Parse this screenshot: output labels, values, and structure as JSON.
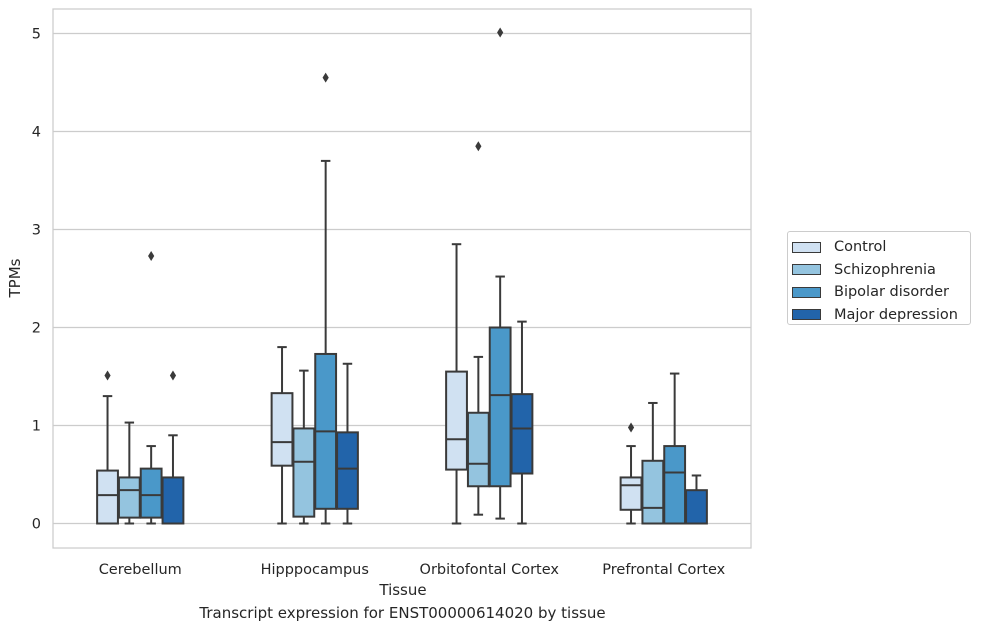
{
  "chart_data": {
    "type": "box",
    "xlabel": "Tissue",
    "ylabel": "TPMs",
    "caption": "Transcript expression for ENST00000614020 by tissue",
    "categories": [
      "Cerebellum",
      "Hipppocampus",
      "Orbitofontal Cortex",
      "Prefrontal Cortex"
    ],
    "ylim": [
      -0.25,
      5.25
    ],
    "yticks": [
      0,
      1,
      2,
      3,
      4,
      5
    ],
    "grid": "horizontal",
    "legend_position": "right",
    "series": [
      {
        "name": "Control",
        "color": "#d0e1f2",
        "boxes": [
          {
            "whisker_low": 0,
            "q1": 0,
            "median": 0.29,
            "q3": 0.54,
            "whisker_high": 1.3,
            "outliers": [
              1.51
            ]
          },
          {
            "whisker_low": 0,
            "q1": 0.59,
            "median": 0.83,
            "q3": 1.33,
            "whisker_high": 1.8,
            "outliers": []
          },
          {
            "whisker_low": 0,
            "q1": 0.55,
            "median": 0.86,
            "q3": 1.55,
            "whisker_high": 2.85,
            "outliers": []
          },
          {
            "whisker_low": 0,
            "q1": 0.14,
            "median": 0.39,
            "q3": 0.47,
            "whisker_high": 0.79,
            "outliers": [
              0.98
            ]
          }
        ]
      },
      {
        "name": "Schizophrenia",
        "color": "#94c4df",
        "boxes": [
          {
            "whisker_low": 0,
            "q1": 0.06,
            "median": 0.34,
            "q3": 0.47,
            "whisker_high": 1.03,
            "outliers": []
          },
          {
            "whisker_low": 0,
            "q1": 0.07,
            "median": 0.63,
            "q3": 0.97,
            "whisker_high": 1.56,
            "outliers": []
          },
          {
            "whisker_low": 0.09,
            "q1": 0.38,
            "median": 0.61,
            "q3": 1.13,
            "whisker_high": 1.7,
            "outliers": [
              3.85
            ]
          },
          {
            "whisker_low": 0,
            "q1": 0,
            "median": 0.16,
            "q3": 0.64,
            "whisker_high": 1.23,
            "outliers": []
          }
        ]
      },
      {
        "name": "Bipolar disorder",
        "color": "#4a98c9",
        "boxes": [
          {
            "whisker_low": 0,
            "q1": 0.06,
            "median": 0.29,
            "q3": 0.56,
            "whisker_high": 0.79,
            "outliers": [
              2.73
            ]
          },
          {
            "whisker_low": 0,
            "q1": 0.15,
            "median": 0.94,
            "q3": 1.73,
            "whisker_high": 3.7,
            "outliers": [
              4.55
            ]
          },
          {
            "whisker_low": 0.05,
            "q1": 0.38,
            "median": 1.31,
            "q3": 2.0,
            "whisker_high": 2.52,
            "outliers": [
              5.01
            ]
          },
          {
            "whisker_low": 0,
            "q1": 0,
            "median": 0.52,
            "q3": 0.79,
            "whisker_high": 1.53,
            "outliers": []
          }
        ]
      },
      {
        "name": "Major depression",
        "color": "#2264aa",
        "boxes": [
          {
            "whisker_low": 0,
            "q1": 0,
            "median": 0,
            "q3": 0.47,
            "whisker_high": 0.9,
            "outliers": [
              1.51
            ]
          },
          {
            "whisker_low": 0,
            "q1": 0.15,
            "median": 0.56,
            "q3": 0.93,
            "whisker_high": 1.63,
            "outliers": []
          },
          {
            "whisker_low": 0,
            "q1": 0.51,
            "median": 0.97,
            "q3": 1.32,
            "whisker_high": 2.06,
            "outliers": []
          },
          {
            "whisker_low": 0,
            "q1": 0,
            "median": 0,
            "q3": 0.34,
            "whisker_high": 0.49,
            "outliers": []
          }
        ]
      }
    ]
  }
}
